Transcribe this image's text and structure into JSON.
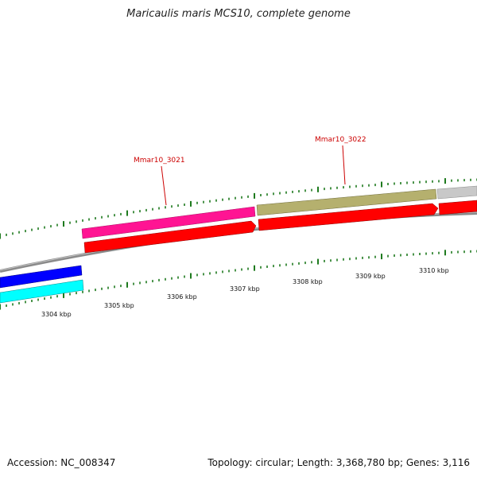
{
  "title": "Maricaulis maris MCS10, complete genome",
  "accession": "Accession: NC_008347",
  "summary": "Topology: circular; Length: 3,368,780 bp; Genes: 3,116",
  "colors": {
    "backbone": "#8a8a8a",
    "tick": "#1e7a1e",
    "forward_track": [
      "#0000ff",
      "#ff1493",
      "#b5b06e",
      "#c8c8c8"
    ],
    "reverse_track": [
      "#00ffff",
      "#ff0000"
    ],
    "gene_label": "#cc0000"
  },
  "tick_labels": [
    "3304 kbp",
    "3305 kbp",
    "3306 kbp",
    "3307 kbp",
    "3308 kbp",
    "3309 kbp",
    "3310 kbp"
  ],
  "gene_labels": [
    "Mmar10_3021",
    "Mmar10_3022"
  ]
}
